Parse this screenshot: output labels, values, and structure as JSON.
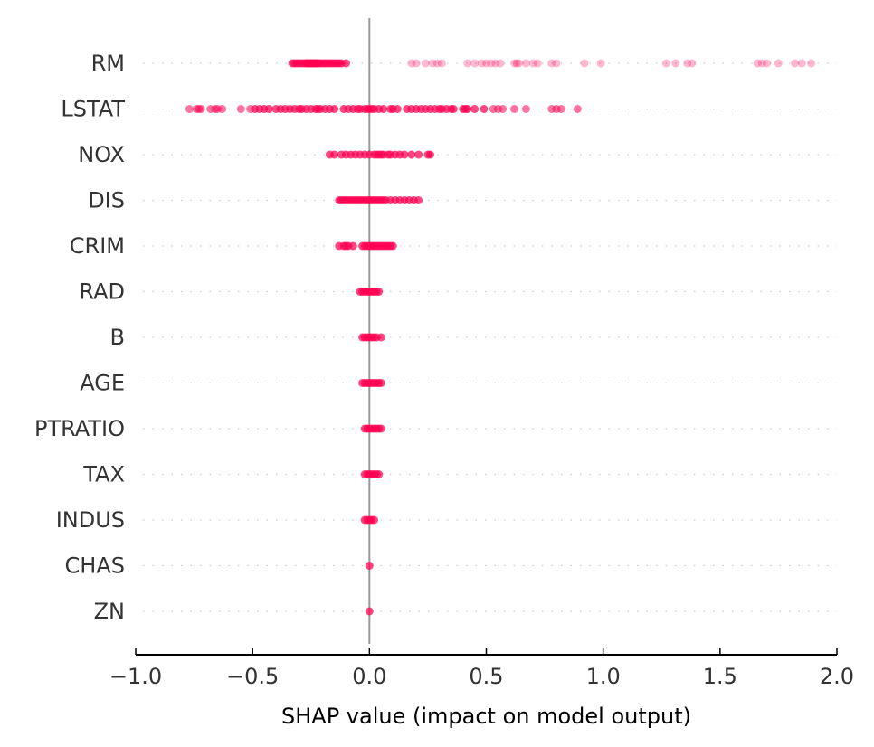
{
  "chart_data": {
    "type": "scatter",
    "variant": "shap-beeswarm-summary",
    "title": "",
    "xlabel": "SHAP value (impact on model output)",
    "ylabel": "",
    "xlim": [
      -1.0,
      2.0
    ],
    "xticks": [
      -1.0,
      -0.5,
      0.0,
      0.5,
      1.0,
      1.5,
      2.0
    ],
    "xtick_labels": [
      "−1.0",
      "−0.5",
      "0.0",
      "0.5",
      "1.0",
      "1.5",
      "2.0"
    ],
    "grid": "dotted horizontal per feature",
    "legend": "none",
    "point_color": "#ff0052",
    "zero_line_color": "#999999",
    "features": [
      {
        "name": "RM",
        "values": [
          -0.33,
          -0.32,
          -0.31,
          -0.3,
          -0.29,
          -0.28,
          -0.27,
          -0.27,
          -0.26,
          -0.26,
          -0.25,
          -0.25,
          -0.24,
          -0.24,
          -0.23,
          -0.23,
          -0.22,
          -0.22,
          -0.21,
          -0.2,
          -0.19,
          -0.18,
          -0.17,
          -0.16,
          -0.15,
          -0.14,
          -0.13,
          -0.12,
          -0.1,
          0.18,
          0.2,
          0.24,
          0.27,
          0.29,
          0.31,
          0.42,
          0.45,
          0.48,
          0.5,
          0.52,
          0.54,
          0.56,
          0.62,
          0.63,
          0.64,
          0.67,
          0.7,
          0.72,
          0.78,
          0.8,
          0.92,
          0.99,
          1.27,
          1.31,
          1.36,
          1.38,
          1.66,
          1.68,
          1.7,
          1.75,
          1.82,
          1.85,
          1.89
        ]
      },
      {
        "name": "LSTAT",
        "values": [
          -0.77,
          -0.74,
          -0.73,
          -0.72,
          -0.68,
          -0.66,
          -0.65,
          -0.63,
          -0.55,
          -0.51,
          -0.49,
          -0.47,
          -0.45,
          -0.43,
          -0.4,
          -0.38,
          -0.36,
          -0.34,
          -0.32,
          -0.3,
          -0.29,
          -0.27,
          -0.25,
          -0.23,
          -0.22,
          -0.21,
          -0.19,
          -0.17,
          -0.15,
          -0.11,
          -0.09,
          -0.07,
          -0.05,
          -0.04,
          -0.02,
          -0.01,
          0.0,
          0.01,
          0.02,
          0.04,
          0.06,
          0.09,
          0.1,
          0.12,
          0.16,
          0.18,
          0.2,
          0.22,
          0.24,
          0.26,
          0.28,
          0.3,
          0.31,
          0.33,
          0.35,
          0.36,
          0.4,
          0.41,
          0.42,
          0.45,
          0.49,
          0.53,
          0.55,
          0.57,
          0.62,
          0.67,
          0.78,
          0.8,
          0.82,
          0.89
        ]
      },
      {
        "name": "NOX",
        "values": [
          -0.17,
          -0.15,
          -0.12,
          -0.1,
          -0.08,
          -0.06,
          -0.04,
          -0.02,
          0.0,
          0.02,
          0.03,
          0.04,
          0.05,
          0.06,
          0.08,
          0.09,
          0.11,
          0.13,
          0.15,
          0.18,
          0.21,
          0.25,
          0.26
        ]
      },
      {
        "name": "DIS",
        "values": [
          -0.13,
          -0.12,
          -0.11,
          -0.1,
          -0.09,
          -0.08,
          -0.07,
          -0.06,
          -0.05,
          -0.04,
          -0.03,
          -0.02,
          -0.01,
          0.0,
          0.01,
          0.02,
          0.03,
          0.04,
          0.05,
          0.06,
          0.07,
          0.09,
          0.11,
          0.13,
          0.15,
          0.17,
          0.19,
          0.21
        ]
      },
      {
        "name": "CRIM",
        "values": [
          -0.13,
          -0.11,
          -0.1,
          -0.09,
          -0.07,
          -0.03,
          -0.02,
          -0.01,
          0.0,
          0.01,
          0.02,
          0.03,
          0.04,
          0.05,
          0.06,
          0.07,
          0.08,
          0.09,
          0.1
        ]
      },
      {
        "name": "RAD",
        "values": [
          -0.04,
          -0.03,
          -0.02,
          -0.01,
          0.0,
          0.01,
          0.02,
          0.03,
          0.04
        ]
      },
      {
        "name": "B",
        "values": [
          -0.03,
          -0.02,
          -0.01,
          0.0,
          0.01,
          0.02,
          0.03,
          0.05
        ]
      },
      {
        "name": "AGE",
        "values": [
          -0.03,
          -0.02,
          -0.01,
          0.0,
          0.01,
          0.02,
          0.03,
          0.04,
          0.05
        ]
      },
      {
        "name": "PTRATIO",
        "values": [
          -0.02,
          -0.01,
          0.0,
          0.01,
          0.02,
          0.03,
          0.04,
          0.05
        ]
      },
      {
        "name": "TAX",
        "values": [
          -0.02,
          -0.01,
          0.0,
          0.01,
          0.02,
          0.03,
          0.04
        ]
      },
      {
        "name": "INDUS",
        "values": [
          -0.02,
          -0.01,
          0.0,
          0.01,
          0.02
        ]
      },
      {
        "name": "CHAS",
        "values": [
          0.0
        ]
      },
      {
        "name": "ZN",
        "values": [
          0.0
        ]
      }
    ]
  }
}
